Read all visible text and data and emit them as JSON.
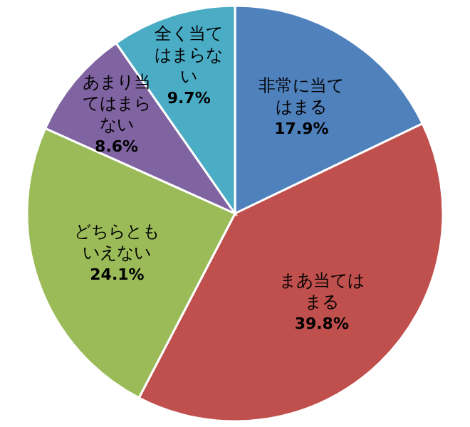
{
  "chart_data": {
    "type": "pie",
    "categories": [
      "非常に当てはまる",
      "まあ当てはまる",
      "どちらともいえない",
      "あまり当てはまらない",
      "全く当てはまらない"
    ],
    "values": [
      17.9,
      39.8,
      24.1,
      8.6,
      9.7
    ],
    "value_labels": [
      "17.9%",
      "39.8%",
      "24.1%",
      "8.6%",
      "9.7%"
    ],
    "colors": [
      "#4f81bd",
      "#c0504d",
      "#9bbb59",
      "#8064a2",
      "#4bacc6"
    ]
  }
}
